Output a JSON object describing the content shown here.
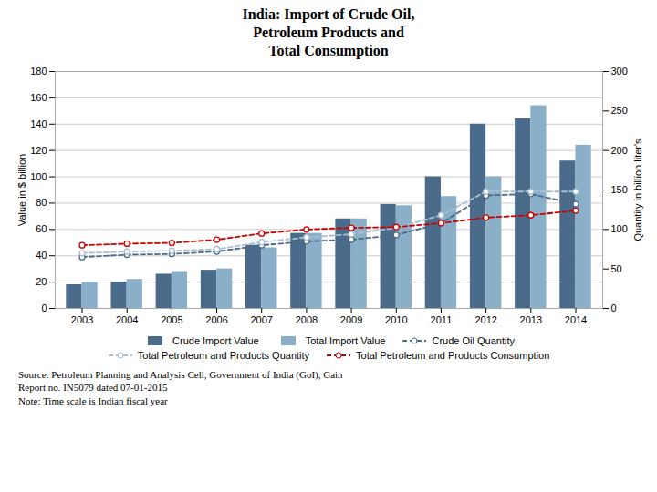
{
  "chart_data": {
    "type": "bar",
    "title": "India: Import of Crude Oil,\nPetroleum Products and\nTotal Consumption",
    "categories": [
      "2003",
      "2004",
      "2005",
      "2006",
      "2007",
      "2008",
      "2009",
      "2010",
      "2011",
      "2012",
      "2013",
      "2014"
    ],
    "series": [
      {
        "name": "Crude Import Value",
        "type": "bar",
        "color": "#4a6b8a",
        "values": [
          18,
          20,
          26,
          29,
          48,
          57,
          68,
          79,
          100,
          140,
          144,
          112
        ]
      },
      {
        "name": "Total Import Value",
        "type": "bar",
        "color": "#8aafc8",
        "values": [
          20,
          22,
          28,
          30,
          46,
          57,
          68,
          78,
          85,
          100,
          154,
          124
        ]
      },
      {
        "name": "Crude Oil Quantity",
        "type": "line",
        "axis": "y2",
        "color": "#4a6b8a",
        "line_style": "dashed",
        "marker": "circle",
        "values": [
          65,
          68,
          69,
          72,
          80,
          85,
          87,
          93,
          108,
          143,
          145,
          132
        ]
      },
      {
        "name": "Total Petroleum and Products Quantity",
        "type": "line",
        "axis": "y2",
        "color": "#a8bfd0",
        "line_style": "dashed",
        "marker": "circle",
        "values": [
          70,
          72,
          73,
          75,
          84,
          90,
          94,
          102,
          118,
          148,
          148,
          148
        ]
      },
      {
        "name": "Total Petroleum and Products Consumption",
        "type": "line",
        "axis": "y2",
        "color": "#cc0000",
        "line_style": "dashed",
        "marker": "circle",
        "values": [
          80,
          82,
          83,
          87,
          95,
          100,
          102,
          103,
          108,
          115,
          118,
          124
        ]
      }
    ],
    "ylabel": "Value in $ billion",
    "y2label": "Quantity in billion liter's",
    "ylim": [
      0,
      180
    ],
    "yticks": [
      0,
      20,
      40,
      60,
      80,
      100,
      120,
      140,
      160,
      180
    ],
    "y2lim": [
      0,
      300
    ],
    "y2ticks": [
      0,
      50,
      100,
      150,
      200,
      250,
      300
    ],
    "grid": true,
    "legend": "bottom",
    "annotations": [
      "Source: Petroleum Planning and Analysis Cell, Government of India (GoI), Gain\nReport  no. IN5079 dated 07-01-2015\nNote: Time scale is Indian fiscal year"
    ]
  }
}
